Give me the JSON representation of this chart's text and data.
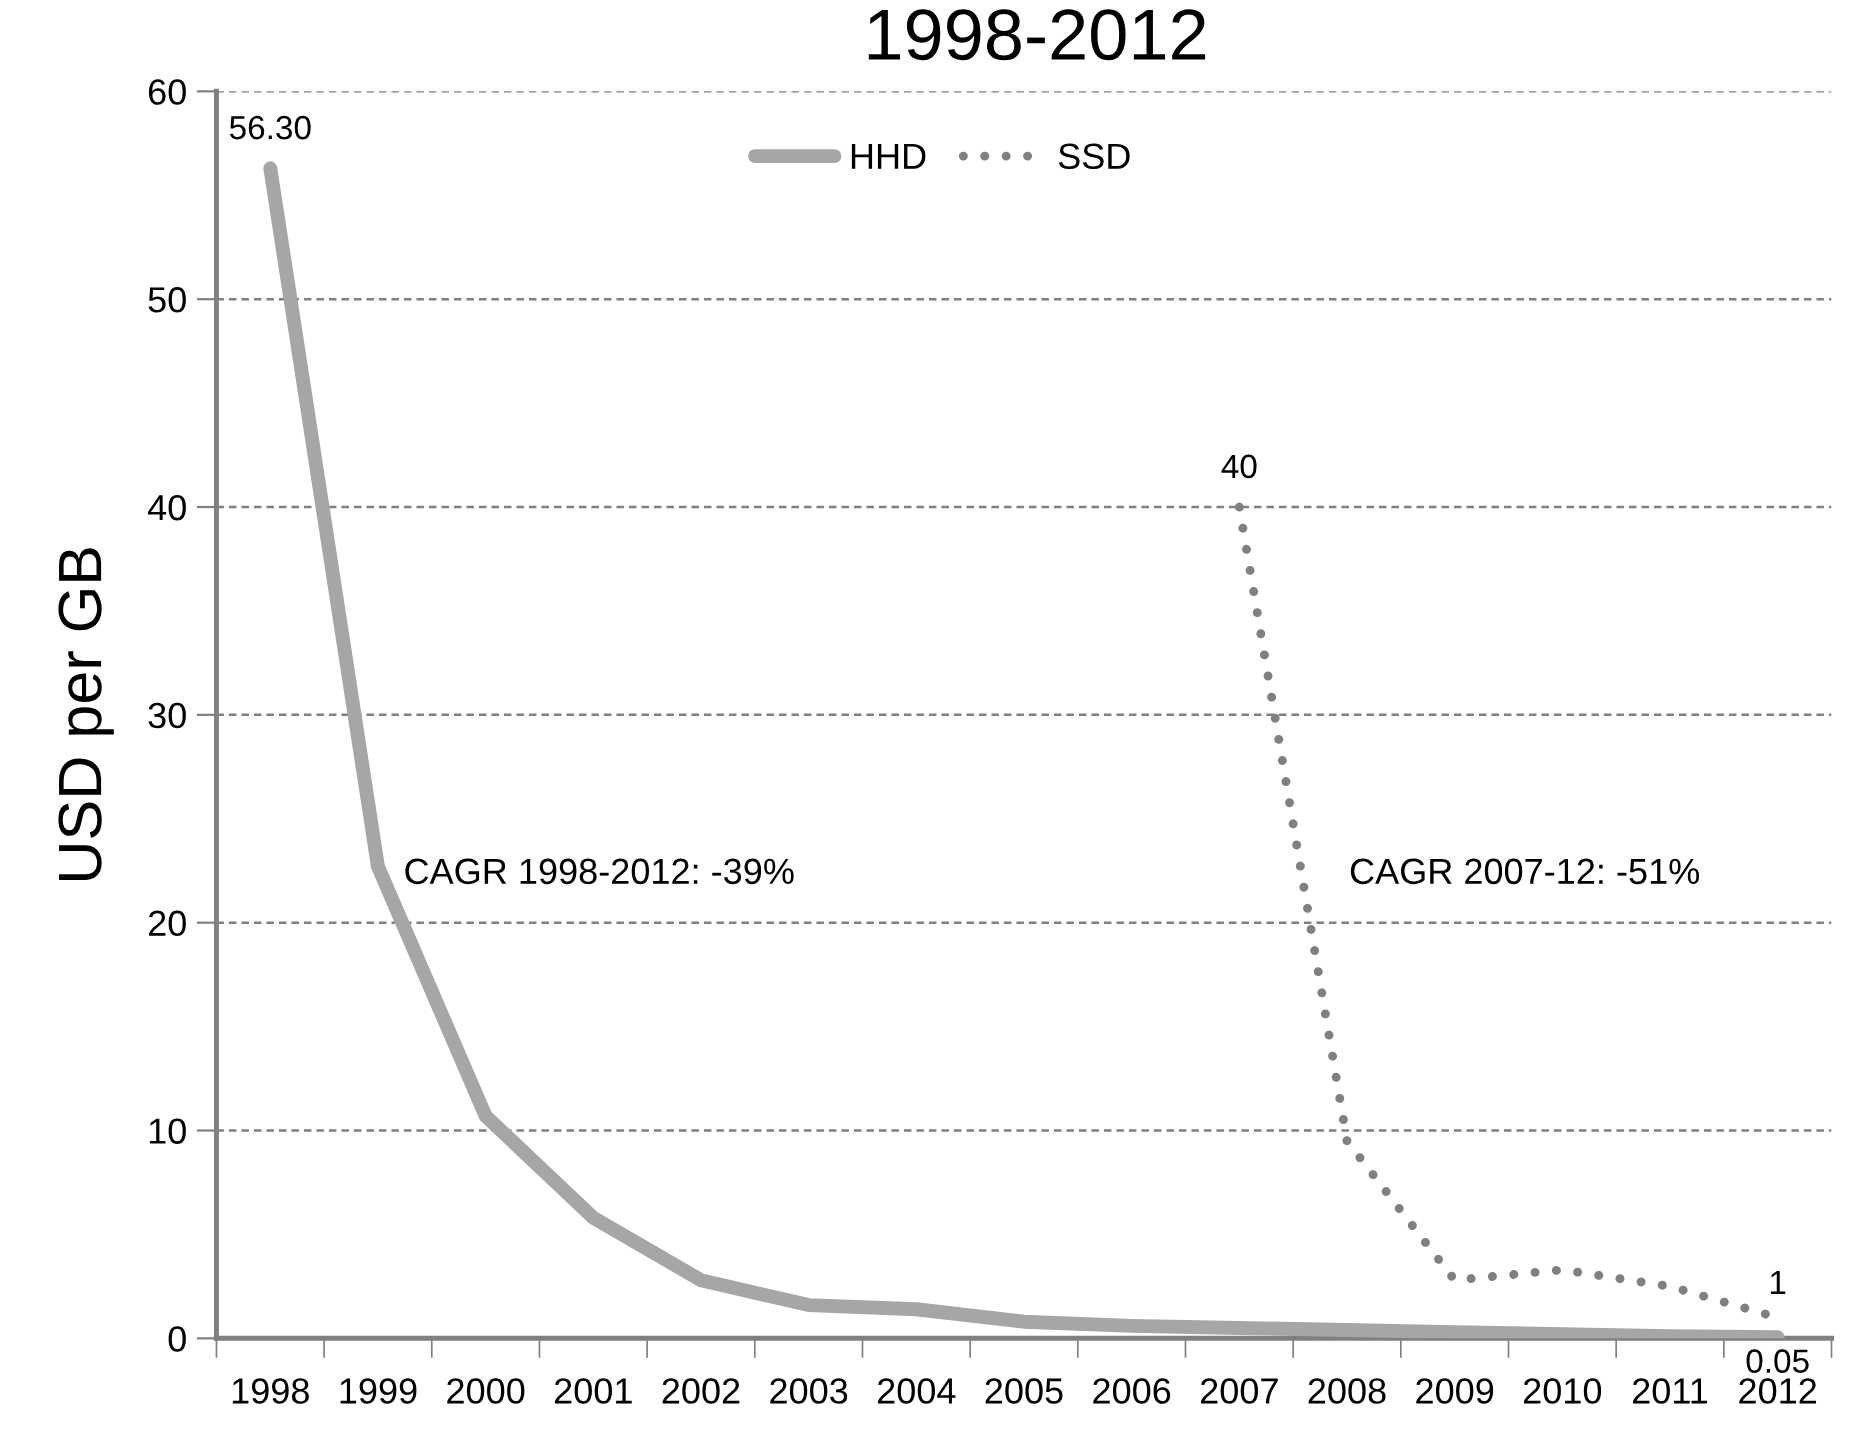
{
  "chart_data": {
    "type": "line",
    "title": "1998-2012",
    "ylabel": "USD per GB",
    "categories": [
      "1998",
      "1999",
      "2000",
      "2001",
      "2002",
      "2003",
      "2004",
      "2005",
      "2006",
      "2007",
      "2008",
      "2009",
      "2010",
      "2011",
      "2012"
    ],
    "series": [
      {
        "name": "HHD",
        "color": "#a6a6a6",
        "line_style": "solid",
        "values": [
          56.3,
          22.7,
          10.7,
          5.8,
          2.8,
          1.6,
          1.4,
          0.8,
          0.6,
          0.5,
          0.4,
          0.3,
          0.2,
          0.1,
          0.05
        ],
        "value_labels": [
          "56.30",
          null,
          null,
          null,
          null,
          null,
          null,
          null,
          null,
          null,
          null,
          null,
          null,
          null,
          "0.05"
        ]
      },
      {
        "name": "SSD",
        "color": "#808080",
        "line_style": "dotted",
        "values": [
          null,
          null,
          null,
          null,
          null,
          null,
          null,
          null,
          null,
          40,
          9.5,
          2.8,
          3.3,
          2.5,
          1
        ],
        "value_labels": [
          null,
          null,
          null,
          null,
          null,
          null,
          null,
          null,
          null,
          "40",
          null,
          null,
          null,
          null,
          "1"
        ]
      }
    ],
    "annotations": [
      "CAGR 1998-2012: -39%",
      "CAGR 2007-12: -51%"
    ],
    "ylim": [
      0,
      60
    ],
    "yticks": [
      0,
      10,
      20,
      30,
      40,
      50,
      60
    ],
    "grid": "y",
    "legend": "top",
    "marker": "none"
  }
}
